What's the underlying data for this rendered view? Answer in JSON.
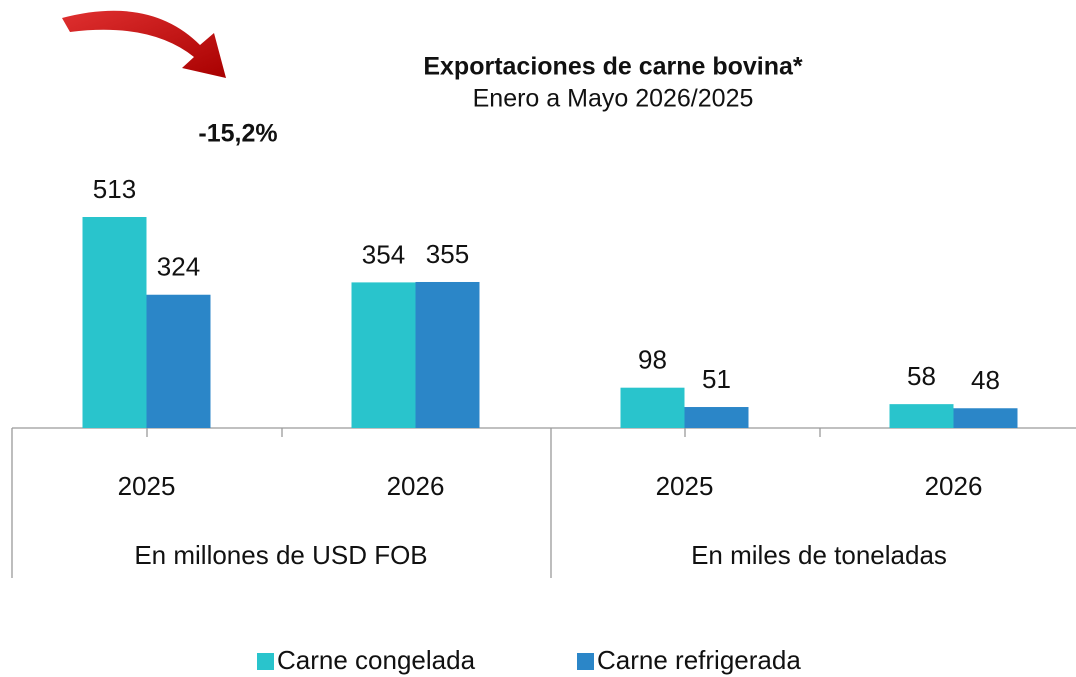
{
  "chart_data": {
    "type": "bar",
    "title": "Exportaciones de carne bovina*",
    "subtitle": "Enero a Mayo 2026/2025",
    "annotation": "-15,2%",
    "categories": [
      "2025",
      "2026",
      "2025",
      "2026"
    ],
    "category_groups": [
      "En millones de USD FOB",
      "En miles de toneladas"
    ],
    "series": [
      {
        "name": "Carne congelada",
        "color": "#29c4cc",
        "values": [
          513,
          354,
          98,
          58
        ]
      },
      {
        "name": "Carne refrigerada",
        "color": "#2b86c8",
        "values": [
          324,
          355,
          51,
          48
        ]
      }
    ],
    "legend": "bottom"
  }
}
